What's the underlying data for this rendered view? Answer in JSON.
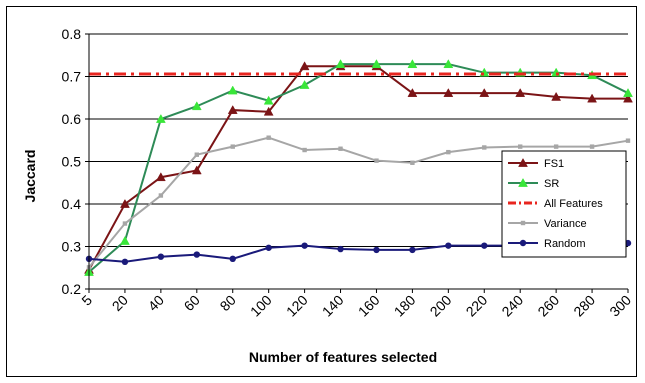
{
  "chart_data": {
    "type": "line",
    "title": "",
    "xlabel": "Number of features selected",
    "ylabel": "Jaccard",
    "categories": [
      "5",
      "20",
      "40",
      "60",
      "80",
      "100",
      "120",
      "140",
      "160",
      "180",
      "200",
      "220",
      "240",
      "260",
      "280",
      "300"
    ],
    "ylim": [
      0.2,
      0.8
    ],
    "yticks": [
      "0.2",
      "0.3",
      "0.4",
      "0.5",
      "0.6",
      "0.7",
      "0.8"
    ],
    "grid": "horizontal",
    "legend_position": "right",
    "series": [
      {
        "name": "FS1",
        "color": "#7b1416",
        "marker": "triangle",
        "values": [
          0.245,
          0.4,
          0.463,
          0.479,
          0.621,
          0.617,
          0.724,
          0.724,
          0.724,
          0.661,
          0.661,
          0.661,
          0.661,
          0.652,
          0.648,
          0.648
        ]
      },
      {
        "name": "SR",
        "color": "#2e8b57",
        "marker": "triangle-bright",
        "values": [
          0.24,
          0.313,
          0.6,
          0.63,
          0.667,
          0.643,
          0.68,
          0.729,
          0.729,
          0.729,
          0.729,
          0.709,
          0.709,
          0.709,
          0.703,
          0.661
        ]
      },
      {
        "name": "All Features",
        "color": "#e8251f",
        "marker": "none",
        "dash": "dashdot",
        "values": [
          0.706,
          0.706,
          0.706,
          0.706,
          0.706,
          0.706,
          0.706,
          0.706,
          0.706,
          0.706,
          0.706,
          0.706,
          0.706,
          0.706,
          0.706,
          0.706
        ]
      },
      {
        "name": "Variance",
        "color": "#a6a6a6",
        "marker": "square",
        "values": [
          0.251,
          0.354,
          0.42,
          0.516,
          0.535,
          0.556,
          0.527,
          0.53,
          0.502,
          0.497,
          0.522,
          0.533,
          0.535,
          0.535,
          0.535,
          0.549
        ]
      },
      {
        "name": "Random",
        "color": "#1a1a7a",
        "marker": "circle",
        "values": [
          0.271,
          0.264,
          0.276,
          0.281,
          0.271,
          0.297,
          0.302,
          0.294,
          0.292,
          0.292,
          0.302,
          0.302,
          0.302,
          0.304,
          0.306,
          0.308
        ]
      }
    ]
  }
}
